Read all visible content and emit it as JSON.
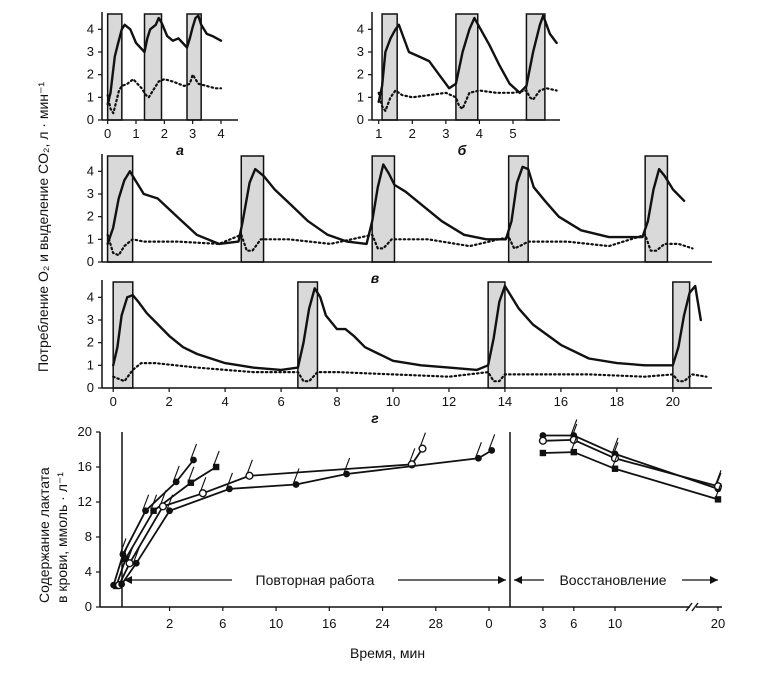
{
  "figure": {
    "y_axis_label_top": "Потребление O₂ и выделение CO₂, л · мин⁻¹",
    "y_axis_label_bottom_line1": "Содержание лактата",
    "y_axis_label_bottom_line2": "в крови, ммоль · л⁻¹",
    "x_axis_label_bottom": "Время, мин",
    "phase_work": "Повторная работа",
    "phase_recovery": "Восстановление"
  },
  "colors": {
    "line": "#111111",
    "shade": "#d9d9d9"
  },
  "chart_data": [
    {
      "id": "a",
      "type": "line",
      "panel_label": "а",
      "xlim": [
        -0.2,
        4.6
      ],
      "ylim": [
        0,
        4.5
      ],
      "xticks": [
        0,
        1,
        2,
        3,
        4
      ],
      "yticks": [
        0,
        1,
        2,
        3,
        4
      ],
      "work_intervals": [
        [
          0,
          0.5
        ],
        [
          1.3,
          1.9
        ],
        [
          2.8,
          3.3
        ]
      ],
      "series": [
        {
          "style": "solid",
          "x": [
            0,
            0.1,
            0.25,
            0.35,
            0.5,
            0.6,
            0.8,
            1.0,
            1.3,
            1.4,
            1.5,
            1.7,
            1.8,
            1.9,
            2.1,
            2.3,
            2.5,
            2.8,
            2.9,
            3.0,
            3.1,
            3.2,
            3.3,
            3.5,
            3.7,
            4.0
          ],
          "y": [
            0.7,
            1.2,
            2.8,
            3.3,
            4.0,
            4.2,
            4.0,
            3.4,
            3.0,
            3.6,
            4.0,
            4.2,
            4.5,
            4.3,
            3.7,
            3.5,
            3.6,
            3.2,
            3.6,
            4.1,
            4.5,
            4.6,
            4.2,
            3.8,
            3.7,
            3.5
          ]
        },
        {
          "style": "dotted",
          "x": [
            0,
            0.1,
            0.2,
            0.3,
            0.4,
            0.5,
            0.7,
            0.9,
            1.2,
            1.35,
            1.45,
            1.6,
            1.8,
            2.0,
            2.3,
            2.7,
            2.9,
            3.0,
            3.2,
            3.5,
            3.8,
            4.0
          ],
          "y": [
            1.1,
            0.5,
            0.3,
            0.8,
            1.3,
            1.5,
            1.6,
            1.8,
            1.4,
            1.1,
            1.0,
            1.3,
            1.7,
            1.8,
            1.7,
            1.5,
            1.6,
            2.0,
            1.6,
            1.5,
            1.4,
            1.4
          ]
        }
      ]
    },
    {
      "id": "b",
      "type": "line",
      "panel_label": "б",
      "xlim": [
        0.8,
        6.4
      ],
      "ylim": [
        0,
        4.5
      ],
      "xticks": [
        1,
        2,
        3,
        4,
        5
      ],
      "yticks": [
        0,
        1,
        2,
        3,
        4
      ],
      "work_intervals": [
        [
          1.1,
          1.55
        ],
        [
          3.3,
          3.95
        ],
        [
          5.4,
          5.95
        ]
      ],
      "series": [
        {
          "style": "solid",
          "x": [
            1.0,
            1.1,
            1.2,
            1.35,
            1.5,
            1.6,
            1.7,
            1.9,
            2.2,
            2.5,
            2.8,
            3.1,
            3.3,
            3.5,
            3.7,
            3.85,
            4.0,
            4.3,
            4.6,
            4.9,
            5.2,
            5.4,
            5.6,
            5.8,
            5.9,
            6.1,
            6.3
          ],
          "y": [
            0.8,
            1.5,
            3.0,
            3.6,
            4.0,
            4.2,
            3.8,
            3.0,
            2.8,
            2.6,
            2.0,
            1.4,
            1.6,
            3.0,
            4.0,
            4.5,
            4.1,
            3.3,
            2.4,
            1.6,
            1.2,
            1.5,
            3.0,
            4.2,
            4.6,
            3.8,
            3.4
          ]
        },
        {
          "style": "dotted",
          "x": [
            1.0,
            1.1,
            1.2,
            1.35,
            1.5,
            1.7,
            2.0,
            2.5,
            3.0,
            3.3,
            3.4,
            3.5,
            3.7,
            4.0,
            4.5,
            5.0,
            5.4,
            5.5,
            5.6,
            5.8,
            6.0,
            6.3
          ],
          "y": [
            1.2,
            0.6,
            0.4,
            1.0,
            1.3,
            1.1,
            1.0,
            1.1,
            1.2,
            1.0,
            0.6,
            0.5,
            1.2,
            1.3,
            1.2,
            1.2,
            1.3,
            1.0,
            0.9,
            1.3,
            1.4,
            1.3
          ]
        }
      ]
    },
    {
      "id": "v",
      "type": "line",
      "panel_label": "в",
      "xlim": [
        -0.2,
        21.7
      ],
      "ylim": [
        0,
        4.5
      ],
      "xticks": [],
      "yticks": [
        0,
        1,
        2,
        3,
        4
      ],
      "work_intervals": [
        [
          0,
          0.9
        ],
        [
          4.8,
          5.6
        ],
        [
          9.5,
          10.3
        ],
        [
          14.4,
          15.1
        ],
        [
          19.3,
          20.1
        ]
      ],
      "series": [
        {
          "style": "solid",
          "x": [
            0,
            0.2,
            0.4,
            0.6,
            0.8,
            1.0,
            1.3,
            1.8,
            2.5,
            3.2,
            4.0,
            4.7,
            4.85,
            5.1,
            5.3,
            5.6,
            6.0,
            6.6,
            7.2,
            7.9,
            8.6,
            9.3,
            9.5,
            9.7,
            9.9,
            10.1,
            10.3,
            10.7,
            11.3,
            12.0,
            12.8,
            13.6,
            14.3,
            14.5,
            14.7,
            14.9,
            15.1,
            15.3,
            15.7,
            16.2,
            17.0,
            18.0,
            19.2,
            19.4,
            19.6,
            19.8,
            20.0,
            20.3,
            20.7
          ],
          "y": [
            0.8,
            1.5,
            2.8,
            3.6,
            4.0,
            3.6,
            3.0,
            2.8,
            2.0,
            1.2,
            0.8,
            0.9,
            1.8,
            3.5,
            4.1,
            3.8,
            3.2,
            2.5,
            1.8,
            1.2,
            0.9,
            0.8,
            1.8,
            3.3,
            4.3,
            3.9,
            3.4,
            3.1,
            2.5,
            1.8,
            1.2,
            1.0,
            1.0,
            1.8,
            3.5,
            4.2,
            4.1,
            3.3,
            2.7,
            2.0,
            1.4,
            1.1,
            1.1,
            1.8,
            3.2,
            4.1,
            3.8,
            3.2,
            2.7
          ]
        },
        {
          "style": "dotted",
          "x": [
            0,
            0.2,
            0.4,
            0.6,
            0.9,
            1.3,
            2.5,
            4.0,
            4.8,
            5.0,
            5.2,
            5.5,
            6.5,
            8.0,
            9.5,
            9.7,
            9.9,
            10.2,
            11.5,
            13.0,
            14.4,
            14.6,
            14.8,
            15.1,
            16.5,
            18.0,
            19.3,
            19.5,
            19.7,
            20.0,
            20.5,
            21.0
          ],
          "y": [
            1.2,
            0.4,
            0.3,
            0.7,
            1.0,
            0.9,
            0.9,
            0.8,
            1.2,
            0.5,
            0.5,
            1.0,
            1.0,
            0.8,
            1.2,
            0.6,
            0.6,
            1.0,
            1.0,
            0.7,
            1.1,
            0.6,
            0.7,
            0.9,
            0.9,
            0.7,
            1.2,
            0.5,
            0.5,
            0.8,
            0.8,
            0.6
          ]
        }
      ]
    },
    {
      "id": "g",
      "type": "line",
      "panel_label": "г",
      "xlim": [
        -0.4,
        21.4
      ],
      "ylim": [
        0,
        4.5
      ],
      "xticks": [
        0,
        2,
        4,
        6,
        8,
        10,
        12,
        14,
        16,
        18,
        20
      ],
      "yticks": [
        0,
        1,
        2,
        3,
        4
      ],
      "work_intervals": [
        [
          0,
          0.7
        ],
        [
          6.6,
          7.3
        ],
        [
          13.4,
          14.0
        ],
        [
          20.0,
          20.6
        ]
      ],
      "series": [
        {
          "style": "solid",
          "x": [
            0,
            0.15,
            0.3,
            0.5,
            0.7,
            0.9,
            1.2,
            1.6,
            2.0,
            2.5,
            3.0,
            4.0,
            5.0,
            6.0,
            6.6,
            6.8,
            7.0,
            7.2,
            7.4,
            7.6,
            8.0,
            8.3,
            8.6,
            9.0,
            9.5,
            10.0,
            11.0,
            12.0,
            13.0,
            13.4,
            13.6,
            13.8,
            14.0,
            14.2,
            14.5,
            15.0,
            16.0,
            17.0,
            18.0,
            19.0,
            20.0,
            20.2,
            20.4,
            20.6,
            20.8,
            21.0
          ],
          "y": [
            1.0,
            1.8,
            3.2,
            4.0,
            4.1,
            3.8,
            3.3,
            2.8,
            2.3,
            1.8,
            1.5,
            1.1,
            0.9,
            0.8,
            0.9,
            2.0,
            3.5,
            4.4,
            4.0,
            3.2,
            2.6,
            2.6,
            2.3,
            1.8,
            1.5,
            1.2,
            1.0,
            0.9,
            0.8,
            1.0,
            2.2,
            3.8,
            4.5,
            4.1,
            3.5,
            2.8,
            1.9,
            1.3,
            1.1,
            1.0,
            1.0,
            1.8,
            3.2,
            4.2,
            4.5,
            3.0
          ]
        },
        {
          "style": "dotted",
          "x": [
            0,
            0.2,
            0.4,
            0.7,
            1.0,
            1.5,
            3.0,
            5.0,
            6.6,
            6.8,
            7.0,
            7.3,
            8.0,
            10.0,
            12.0,
            13.4,
            13.6,
            13.8,
            14.0,
            15.0,
            17.0,
            19.0,
            20.0,
            20.2,
            20.4,
            20.7,
            21.2
          ],
          "y": [
            0.5,
            0.4,
            0.3,
            0.8,
            1.1,
            1.1,
            0.9,
            0.7,
            0.7,
            0.3,
            0.3,
            0.7,
            0.7,
            0.6,
            0.5,
            0.7,
            0.3,
            0.3,
            0.6,
            0.6,
            0.6,
            0.5,
            0.6,
            0.3,
            0.3,
            0.6,
            0.5
          ]
        }
      ]
    },
    {
      "id": "lactate",
      "type": "line",
      "ylim": [
        0,
        20
      ],
      "yticks": [
        0,
        4,
        8,
        12,
        16,
        20
      ],
      "xticks_work": [
        2,
        6,
        10,
        14,
        18,
        22,
        26
      ],
      "xlabels_work": [
        "2",
        "6",
        "10",
        "16",
        "24",
        "28",
        "0"
      ],
      "xticks_recovery": [
        3,
        6,
        10,
        20
      ],
      "xlabels_recovery": [
        "3",
        "6",
        "10",
        "20"
      ],
      "series": [
        {
          "marker": "filled-circle",
          "phase": "work",
          "x": [
            -2.2,
            -1.5,
            0.2,
            2.5,
            3.8
          ],
          "y": [
            2.5,
            6.0,
            11.0,
            14.3,
            16.8
          ]
        },
        {
          "marker": "filled-square",
          "phase": "work",
          "x": [
            -2.0,
            -1.3,
            0.8,
            3.6,
            5.5
          ],
          "y": [
            2.4,
            5.5,
            11.0,
            14.2,
            16.0
          ]
        },
        {
          "marker": "open-circle",
          "phase": "work",
          "x": [
            -1.8,
            -1.0,
            1.5,
            4.5,
            8.0,
            20.2,
            21.0
          ],
          "y": [
            2.5,
            5.0,
            11.5,
            13.0,
            15.0,
            16.3,
            18.1
          ]
        },
        {
          "marker": "filled-circle",
          "phase": "work",
          "x": [
            -1.6,
            -0.5,
            2.0,
            6.5,
            11.5,
            15.3,
            25.2,
            26.2
          ],
          "y": [
            2.6,
            5.0,
            11.0,
            13.5,
            14.0,
            15.2,
            17.0,
            17.9
          ]
        },
        {
          "marker": "filled-circle",
          "phase": "recovery",
          "x": [
            3,
            6,
            10,
            20
          ],
          "y": [
            19.6,
            19.6,
            17.5,
            13.5
          ]
        },
        {
          "marker": "open-circle",
          "phase": "recovery",
          "x": [
            3,
            6,
            10,
            20
          ],
          "y": [
            19.0,
            19.1,
            17.0,
            13.8
          ]
        },
        {
          "marker": "filled-square",
          "phase": "recovery",
          "x": [
            3,
            6,
            10,
            20
          ],
          "y": [
            17.6,
            17.7,
            15.8,
            12.3
          ]
        }
      ]
    }
  ]
}
